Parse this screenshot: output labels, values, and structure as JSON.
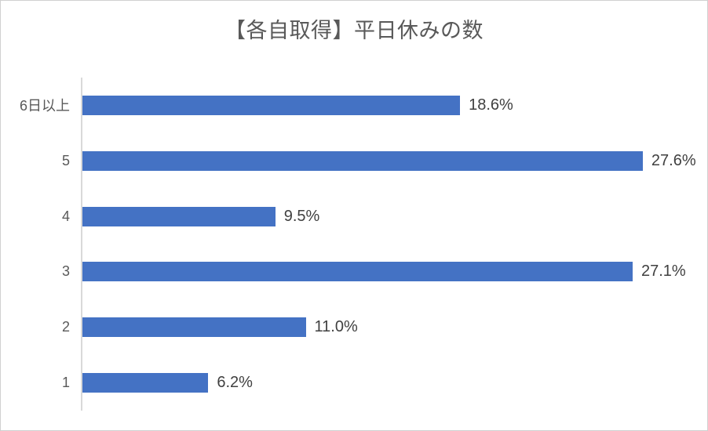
{
  "window": {
    "background": "#ffffff",
    "border_color": "#d0d0d0"
  },
  "chart_data": {
    "type": "bar",
    "orientation": "horizontal",
    "title": "【各自取得】平日休みの数",
    "categories": [
      "6日以上",
      "5",
      "4",
      "3",
      "2",
      "1"
    ],
    "values": [
      18.6,
      27.6,
      9.5,
      27.1,
      11.0,
      6.2
    ],
    "data_labels": [
      "18.6%",
      "27.6%",
      "9.5%",
      "27.1%",
      "11.0%",
      "6.2%"
    ],
    "xlabel": "",
    "ylabel": "",
    "xlim": [
      0,
      30
    ],
    "grid": false,
    "legend": false,
    "bar_color": "#4472C4",
    "title_color": "#595959",
    "category_label_color": "#595959",
    "data_label_color": "#404040",
    "axis_line_color": "#d9d9d9"
  }
}
